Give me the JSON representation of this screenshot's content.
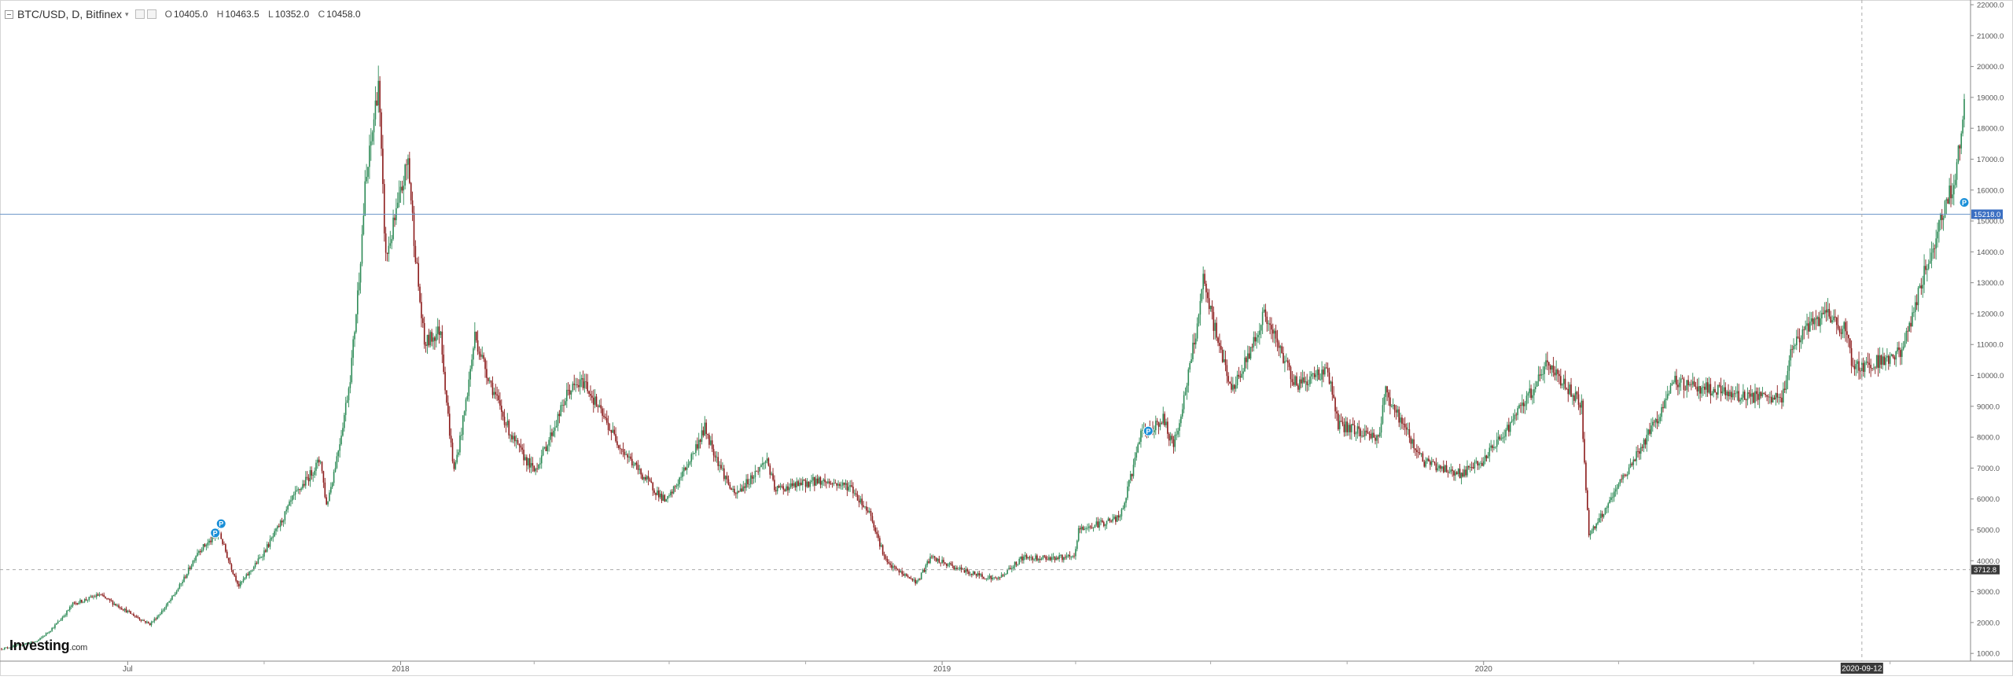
{
  "header": {
    "symbol": "BTC/USD, D, Bitfinex",
    "caret": "▾",
    "ohlc": {
      "o_label": "O",
      "o": "10405.0",
      "h_label": "H",
      "h": "10463.5",
      "l_label": "L",
      "l": "10352.0",
      "c_label": "C",
      "c": "10458.0"
    }
  },
  "logo": {
    "brand": "Investing",
    "domain": ".com"
  },
  "colors": {
    "up": "#2e8b57",
    "down": "#8b1a1a",
    "current_line": "#6f99c9",
    "current_badge": "#3b6fc2",
    "marker": "#1a8fd8",
    "dashed": "#aaaaaa",
    "axis": "#555555"
  },
  "chart_data": {
    "type": "candlestick",
    "title": "BTC/USD, D, Bitfinex",
    "xlabel": "",
    "ylabel": "",
    "ylim": [
      750,
      22000
    ],
    "xlim": [
      "2017-04-07",
      "2020-11-20"
    ],
    "y_ticks": [
      "1000.0",
      "2000.0",
      "3000.0",
      "4000.0",
      "5000.0",
      "6000.0",
      "7000.0",
      "8000.0",
      "9000.0",
      "10000.0",
      "11000.0",
      "12000.0",
      "13000.0",
      "14000.0",
      "15000.0",
      "16000.0",
      "17000.0",
      "18000.0",
      "19000.0",
      "20000.0",
      "21000.0",
      "22000.0"
    ],
    "x_ticks": [
      {
        "label": "Jul",
        "date": "2017-07-01"
      },
      {
        "label": "2018",
        "date": "2018-01-01"
      },
      {
        "label": "2019",
        "date": "2019-01-01"
      },
      {
        "label": "2020",
        "date": "2020-01-01"
      }
    ],
    "x_minor_ticks": [
      "2017-04-01",
      "2017-10-01",
      "2018-04-01",
      "2018-07-01",
      "2018-10-01",
      "2019-04-01",
      "2019-07-01",
      "2019-10-01",
      "2020-04-01",
      "2020-07-01",
      "2020-10-01"
    ],
    "current_price": {
      "value": 15218.0,
      "label": "15218.0"
    },
    "crosshair": {
      "value": 3712.8,
      "label": "3712.8",
      "date": "2020-09-12",
      "date_label": "2020-09-12"
    },
    "price_path": [
      [
        "2017-04-07",
        1150
      ],
      [
        "2017-05-01",
        1400
      ],
      [
        "2017-05-25",
        2600
      ],
      [
        "2017-06-12",
        2900
      ],
      [
        "2017-06-26",
        2500
      ],
      [
        "2017-07-16",
        1950
      ],
      [
        "2017-07-31",
        2800
      ],
      [
        "2017-08-17",
        4300
      ],
      [
        "2017-09-01",
        4900
      ],
      [
        "2017-09-14",
        3200
      ],
      [
        "2017-10-01",
        4300
      ],
      [
        "2017-10-20",
        6000
      ],
      [
        "2017-11-08",
        7300
      ],
      [
        "2017-11-12",
        5800
      ],
      [
        "2017-11-28",
        10000
      ],
      [
        "2017-12-08",
        16000
      ],
      [
        "2017-12-17",
        19600
      ],
      [
        "2017-12-22",
        13800
      ],
      [
        "2018-01-06",
        17000
      ],
      [
        "2018-01-17",
        11000
      ],
      [
        "2018-01-28",
        11500
      ],
      [
        "2018-02-06",
        6900
      ],
      [
        "2018-02-20",
        11300
      ],
      [
        "2018-03-18",
        7900
      ],
      [
        "2018-04-01",
        6900
      ],
      [
        "2018-04-24",
        9500
      ],
      [
        "2018-05-05",
        9800
      ],
      [
        "2018-06-01",
        7500
      ],
      [
        "2018-06-29",
        5900
      ],
      [
        "2018-07-25",
        8300
      ],
      [
        "2018-08-14",
        6100
      ],
      [
        "2018-09-05",
        7300
      ],
      [
        "2018-09-10",
        6300
      ],
      [
        "2018-10-10",
        6600
      ],
      [
        "2018-10-31",
        6400
      ],
      [
        "2018-11-14",
        5500
      ],
      [
        "2018-11-25",
        3900
      ],
      [
        "2018-12-15",
        3300
      ],
      [
        "2018-12-24",
        4100
      ],
      [
        "2019-01-20",
        3600
      ],
      [
        "2019-02-07",
        3400
      ],
      [
        "2019-02-24",
        4100
      ],
      [
        "2019-03-31",
        4100
      ],
      [
        "2019-04-03",
        5000
      ],
      [
        "2019-05-01",
        5400
      ],
      [
        "2019-05-14",
        8000
      ],
      [
        "2019-05-30",
        8600
      ],
      [
        "2019-06-06",
        7700
      ],
      [
        "2019-06-26",
        13000
      ],
      [
        "2019-07-16",
        9500
      ],
      [
        "2019-08-06",
        12000
      ],
      [
        "2019-08-28",
        9700
      ],
      [
        "2019-09-18",
        10200
      ],
      [
        "2019-09-25",
        8400
      ],
      [
        "2019-10-22",
        8000
      ],
      [
        "2019-10-27",
        9500
      ],
      [
        "2019-11-22",
        7200
      ],
      [
        "2019-12-17",
        6800
      ],
      [
        "2019-12-31",
        7200
      ],
      [
        "2020-01-31",
        9300
      ],
      [
        "2020-02-13",
        10400
      ],
      [
        "2020-03-07",
        9100
      ],
      [
        "2020-03-12",
        4900
      ],
      [
        "2020-03-16",
        5100
      ],
      [
        "2020-04-05",
        6800
      ],
      [
        "2020-04-29",
        8800
      ],
      [
        "2020-05-09",
        9800
      ],
      [
        "2020-06-15",
        9400
      ],
      [
        "2020-07-20",
        9200
      ],
      [
        "2020-07-27",
        11000
      ],
      [
        "2020-08-17",
        12000
      ],
      [
        "2020-09-03",
        11400
      ],
      [
        "2020-09-05",
        10200
      ],
      [
        "2020-10-08",
        10700
      ],
      [
        "2020-10-21",
        12800
      ],
      [
        "2020-11-05",
        15200
      ],
      [
        "2020-11-13",
        16300
      ],
      [
        "2020-11-20",
        18700
      ]
    ],
    "markers": [
      {
        "label": "P",
        "date": "2017-08-29",
        "price": 4900
      },
      {
        "label": "P",
        "date": "2017-09-02",
        "price": 5200
      },
      {
        "label": "P",
        "date": "2019-05-20",
        "price": 8200
      },
      {
        "label": "P",
        "date": "2020-11-20",
        "price": 15600
      }
    ]
  }
}
